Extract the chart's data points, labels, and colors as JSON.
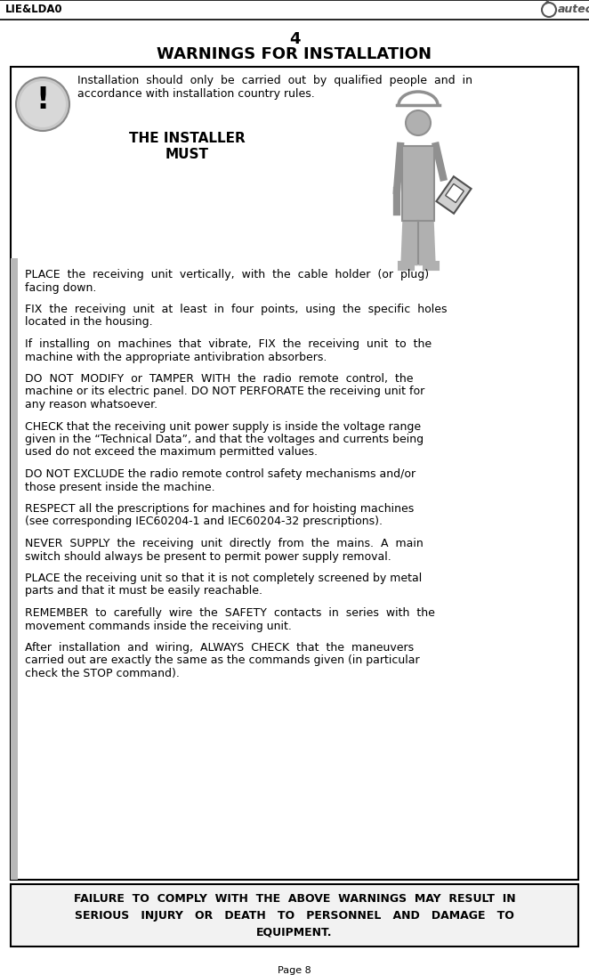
{
  "page_label": "LIE&LDA0",
  "logo_text": "autec",
  "page_number": "Page 8",
  "section_number": "4",
  "title": "WARNINGS FOR INSTALLATION",
  "bg_color": "#ffffff",
  "intro_text_line1": "Installation  should  only  be  carried  out  by  qualified  people  and  in",
  "intro_text_line2": "accordance with installation country rules.",
  "installer_line1": "THE INSTALLER",
  "installer_line2": "MUST",
  "warnings": [
    "PLACE  the  receiving  unit  vertically,  with  the  cable  holder  (or  plug)\nfacing down.",
    "FIX  the  receiving  unit  at  least  in  four  points,  using  the  specific  holes\nlocated in the housing.",
    "If  installing  on  machines  that  vibrate,  FIX  the  receiving  unit  to  the\nmachine with the appropriate antivibration absorbers.",
    "DO  NOT  MODIFY  or  TAMPER  WITH  the  radio  remote  control,  the\nmachine or its electric panel. DO NOT PERFORATE the receiving unit for\nany reason whatsoever.",
    "CHECK that the receiving unit power supply is inside the voltage range\ngiven in the “Technical Data”, and that the voltages and currents being\nused do not exceed the maximum permitted values.",
    "DO NOT EXCLUDE the radio remote control safety mechanisms and/or\nthose present inside the machine.",
    "RESPECT all the prescriptions for machines and for hoisting machines\n(see corresponding IEC60204-1 and IEC60204-32 prescriptions).",
    "NEVER  SUPPLY  the  receiving  unit  directly  from  the  mains.  A  main\nswitch should always be present to permit power supply removal.",
    "PLACE the receiving unit so that it is not completely screened by metal\nparts and that it must be easily reachable.",
    "REMEMBER  to  carefully  wire  the  SAFETY  contacts  in  series  with  the\nmovement commands inside the receiving unit.",
    "After  installation  and  wiring,  ALWAYS  CHECK  that  the  maneuvers\ncarried out are exactly the same as the commands given (in particular\ncheck the STOP command)."
  ],
  "footer_lines": [
    "FAILURE  TO  COMPLY  WITH  THE  ABOVE  WARNINGS  MAY  RESULT  IN",
    "SERIOUS   INJURY   OR   DEATH   TO   PERSONNEL   AND   DAMAGE   TO",
    "EQUIPMENT."
  ],
  "gray_color": "#909090",
  "mid_gray": "#b0b0b0",
  "light_gray": "#d0d0d0",
  "border_color": "#000000",
  "text_color": "#000000",
  "fs_header": 8.5,
  "fs_title_num": 13,
  "fs_title": 13,
  "fs_body": 9.0,
  "fs_installer": 11,
  "fs_footer": 9.0,
  "fs_page": 8.0
}
